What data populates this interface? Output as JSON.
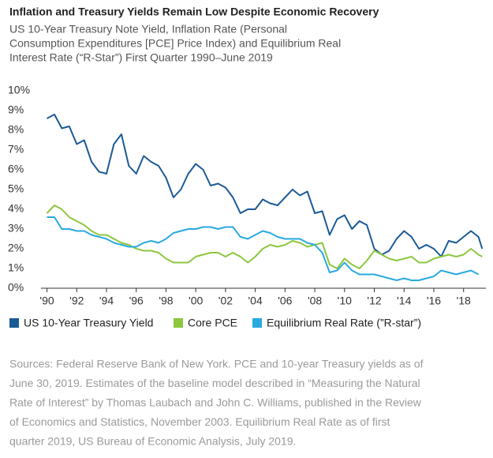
{
  "chart_data": {
    "type": "line",
    "title": "Inflation and Treasury Yields Remain Low Despite Economic Recovery",
    "subtitle": [
      "US 10-Year Treasury Note Yield, Inflation Rate (Personal",
      "Consumption Expenditures [PCE] Price Index) and Equilibrium Real",
      "Interest Rate (“R-Star”) First Quarter 1990–June 2019"
    ],
    "x": [
      1990,
      1990.5,
      1991,
      1991.5,
      1992,
      1992.5,
      1993,
      1993.5,
      1994,
      1994.5,
      1995,
      1995.5,
      1996,
      1996.5,
      1997,
      1997.5,
      1998,
      1998.5,
      1999,
      1999.5,
      2000,
      2000.5,
      2001,
      2001.5,
      2002,
      2002.5,
      2003,
      2003.5,
      2004,
      2004.5,
      2005,
      2005.5,
      2006,
      2006.5,
      2007,
      2007.5,
      2008,
      2008.5,
      2009,
      2009.5,
      2010,
      2010.5,
      2011,
      2011.5,
      2012,
      2012.5,
      2013,
      2013.5,
      2014,
      2014.5,
      2015,
      2015.5,
      2016,
      2016.5,
      2017,
      2017.5,
      2018,
      2018.5,
      2019,
      2019.25
    ],
    "series": [
      {
        "name": "US 10-Year Treasury Yield",
        "color": "#1a5a96",
        "values": [
          8.6,
          8.8,
          8.1,
          8.2,
          7.3,
          7.5,
          6.4,
          5.9,
          5.8,
          7.3,
          7.8,
          6.2,
          5.8,
          6.7,
          6.4,
          6.2,
          5.6,
          4.6,
          5.0,
          5.8,
          6.3,
          6.0,
          5.2,
          5.3,
          5.1,
          4.6,
          3.8,
          4.0,
          4.0,
          4.5,
          4.3,
          4.2,
          4.6,
          5.0,
          4.7,
          4.9,
          3.8,
          3.9,
          2.7,
          3.5,
          3.7,
          3.0,
          3.4,
          3.2,
          2.0,
          1.7,
          1.9,
          2.5,
          2.9,
          2.6,
          2.0,
          2.2,
          2.0,
          1.6,
          2.4,
          2.3,
          2.6,
          2.9,
          2.6,
          2.0
        ]
      },
      {
        "name": "Core PCE",
        "color": "#8dc63f",
        "values": [
          3.8,
          4.2,
          4.0,
          3.6,
          3.4,
          3.2,
          2.9,
          2.7,
          2.7,
          2.5,
          2.3,
          2.2,
          2.0,
          1.9,
          1.9,
          1.8,
          1.5,
          1.3,
          1.3,
          1.3,
          1.6,
          1.7,
          1.8,
          1.8,
          1.6,
          1.8,
          1.6,
          1.3,
          1.6,
          2.0,
          2.2,
          2.1,
          2.2,
          2.4,
          2.3,
          2.1,
          2.2,
          2.3,
          1.2,
          1.0,
          1.5,
          1.2,
          1.0,
          1.4,
          1.9,
          1.7,
          1.5,
          1.4,
          1.5,
          1.6,
          1.3,
          1.3,
          1.5,
          1.6,
          1.7,
          1.6,
          1.7,
          2.0,
          1.7,
          1.6
        ]
      },
      {
        "name": "Equilibrium Real Rate (”R-star”)",
        "color": "#29a9e0",
        "values": [
          3.6,
          3.6,
          3.0,
          3.0,
          2.9,
          2.9,
          2.7,
          2.6,
          2.5,
          2.3,
          2.2,
          2.1,
          2.1,
          2.3,
          2.4,
          2.3,
          2.5,
          2.8,
          2.9,
          3.0,
          3.0,
          3.1,
          3.1,
          3.0,
          3.1,
          3.1,
          2.6,
          2.5,
          2.7,
          2.9,
          2.8,
          2.6,
          2.5,
          2.5,
          2.5,
          2.3,
          2.2,
          1.8,
          0.8,
          0.9,
          1.3,
          0.9,
          0.7,
          0.7,
          0.7,
          0.6,
          0.5,
          0.4,
          0.5,
          0.4,
          0.4,
          0.5,
          0.6,
          0.9,
          0.8,
          0.7,
          0.8,
          0.9,
          0.7,
          null
        ]
      }
    ],
    "xlim": [
      1989.6,
      2019.5
    ],
    "xticks": [
      {
        "value": 1990,
        "label": "'90"
      },
      {
        "value": 1992,
        "label": "'92"
      },
      {
        "value": 1994,
        "label": "'94"
      },
      {
        "value": 1996,
        "label": "'96"
      },
      {
        "value": 1998,
        "label": "'98"
      },
      {
        "value": 2000,
        "label": "'00"
      },
      {
        "value": 2002,
        "label": "'02"
      },
      {
        "value": 2004,
        "label": "'04"
      },
      {
        "value": 2006,
        "label": "'06"
      },
      {
        "value": 2008,
        "label": "'08"
      },
      {
        "value": 2010,
        "label": "'10"
      },
      {
        "value": 2012,
        "label": "'12"
      },
      {
        "value": 2014,
        "label": "'14"
      },
      {
        "value": 2016,
        "label": "'16"
      },
      {
        "value": 2018,
        "label": "'18"
      }
    ],
    "ylim": [
      0,
      10
    ],
    "yticks": [
      {
        "value": 0,
        "label": "0%"
      },
      {
        "value": 1,
        "label": "1%"
      },
      {
        "value": 2,
        "label": "2%"
      },
      {
        "value": 3,
        "label": "3%"
      },
      {
        "value": 4,
        "label": "4%"
      },
      {
        "value": 5,
        "label": "5%"
      },
      {
        "value": 6,
        "label": "6%"
      },
      {
        "value": 7,
        "label": "7%"
      },
      {
        "value": 8,
        "label": "8%"
      },
      {
        "value": 9,
        "label": "9%"
      },
      {
        "value": 10,
        "label": "10%"
      }
    ],
    "legend": "bottom",
    "source": [
      "Sources: Federal Reserve Bank of New York. PCE and 10-year Treasury yields as of",
      "June 30, 2019. Estimates of the baseline model described in “Measuring the Natural",
      "Rate of Interest” by Thomas Laubach and John C. Williams, published in the Review",
      "of Economics and Statistics, November 2003. Equilibrium Real Rate as of first",
      "quarter 2019, US Bureau of Economic Analysis, July 2019."
    ]
  }
}
